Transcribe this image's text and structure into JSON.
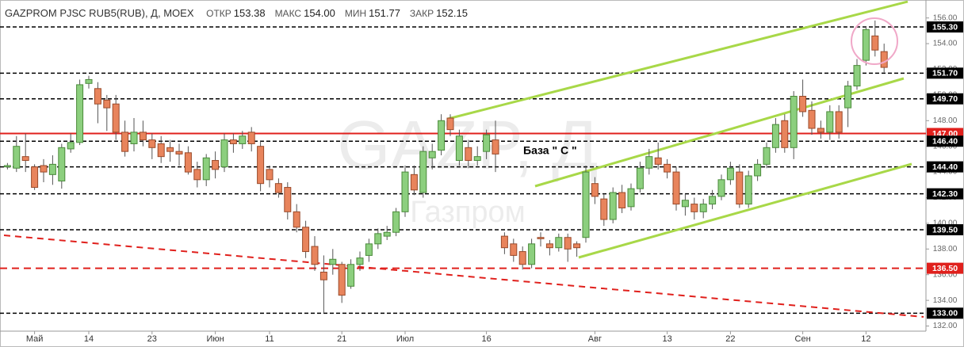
{
  "header": {
    "symbol": "GAZPROM PJSC RUB5(RUB), Д, MOEX",
    "stats": [
      {
        "label": "ОТКР",
        "value": "153.38"
      },
      {
        "label": "МАКС",
        "value": "154.00"
      },
      {
        "label": "МИН",
        "value": "151.77"
      },
      {
        "label": "ЗАКР",
        "value": "152.15"
      }
    ]
  },
  "chart_data": {
    "type": "candlestick",
    "watermark": "GAZP, Д",
    "watermark_subtitle": "Газпром",
    "annotation": "База \" С \"",
    "categories": [
      null,
      null,
      null,
      "Май",
      null,
      null,
      null,
      null,
      null,
      "14",
      null,
      null,
      null,
      null,
      null,
      null,
      "23",
      null,
      null,
      null,
      null,
      null,
      null,
      "Июн",
      null,
      null,
      null,
      null,
      null,
      "11",
      null,
      null,
      null,
      null,
      null,
      null,
      null,
      "21",
      null,
      null,
      null,
      null,
      null,
      null,
      "Июл",
      null,
      null,
      null,
      null,
      null,
      null,
      null,
      null,
      "16",
      null,
      null,
      null,
      null,
      null,
      null,
      null,
      null,
      null,
      null,
      null,
      "Авг",
      null,
      null,
      null,
      null,
      null,
      null,
      null,
      "13",
      null,
      null,
      null,
      null,
      null,
      null,
      "22",
      null,
      null,
      null,
      null,
      null,
      null,
      null,
      "Сен",
      null,
      null,
      null,
      null,
      null,
      null,
      "12",
      null,
      null
    ],
    "open": [
      144.4,
      144.3,
      145.2,
      144.4,
      144.5,
      143.8,
      143.3,
      145.8,
      146.3,
      150.9,
      150.5,
      149.6,
      149.3,
      147.1,
      146.2,
      147.1,
      146.5,
      146.2,
      145.9,
      145.6,
      145.5,
      144.2,
      143.4,
      144.9,
      144.4,
      146.5,
      146.2,
      147.1,
      146.0,
      144.2,
      143.1,
      142.8,
      140.9,
      139.7,
      138.2,
      136.2,
      136.8,
      136.8,
      135.1,
      136.8,
      137.5,
      138.4,
      139.0,
      139.3,
      140.9,
      143.8,
      142.4,
      145.1,
      145.7,
      148.2,
      144.9,
      145.9,
      144.9,
      145.6,
      146.5,
      139.0,
      138.4,
      137.8,
      136.8,
      138.9,
      138.4,
      138.1,
      138.9,
      138.4,
      138.9,
      143.1,
      141.9,
      140.3,
      142.4,
      141.3,
      142.7,
      144.3,
      145.1,
      144.6,
      144.0,
      141.3,
      141.5,
      140.9,
      141.5,
      142.1,
      143.4,
      144.0,
      141.5,
      143.7,
      144.6,
      145.9,
      148.0,
      145.9,
      149.9,
      148.8,
      147.4,
      147.1,
      148.7,
      149.0,
      150.7,
      152.7,
      154.6,
      153.38
    ],
    "high": [
      144.7,
      146.8,
      147.0,
      144.6,
      145.0,
      145.3,
      146.2,
      147.0,
      151.2,
      151.5,
      151.0,
      150.0,
      150.0,
      148.0,
      148.2,
      148.0,
      147.0,
      146.8,
      146.5,
      146.2,
      146.0,
      144.8,
      145.4,
      145.6,
      147.0,
      147.0,
      147.2,
      147.5,
      146.4,
      144.5,
      143.5,
      143.2,
      141.5,
      140.2,
      139.0,
      137.5,
      138.0,
      137.0,
      137.2,
      137.8,
      138.8,
      139.6,
      139.8,
      141.2,
      144.5,
      144.5,
      146.0,
      146.2,
      148.5,
      148.5,
      147.3,
      146.5,
      146.0,
      147.3,
      148.0,
      139.3,
      138.8,
      138.2,
      138.8,
      139.3,
      138.7,
      139.2,
      139.2,
      138.6,
      144.5,
      143.6,
      142.3,
      142.8,
      143.0,
      143.1,
      144.8,
      145.8,
      146.3,
      145.0,
      144.4,
      142.3,
      142.0,
      141.9,
      142.6,
      143.8,
      144.8,
      144.6,
      144.1,
      145.0,
      146.3,
      148.2,
      148.5,
      150.3,
      151.2,
      149.5,
      148.0,
      149.2,
      149.2,
      151.1,
      152.8,
      155.3,
      155.8,
      154.0
    ],
    "low": [
      144.2,
      144.0,
      144.0,
      142.6,
      143.2,
      143.0,
      142.7,
      145.5,
      146.1,
      150.5,
      147.8,
      147.2,
      146.5,
      145.2,
      145.6,
      146.0,
      145.0,
      144.7,
      144.8,
      144.5,
      143.8,
      142.8,
      142.9,
      143.5,
      144.0,
      145.5,
      145.8,
      145.6,
      142.5,
      142.8,
      142.0,
      140.3,
      139.3,
      137.3,
      136.3,
      133.0,
      136.0,
      133.8,
      134.9,
      136.3,
      137.0,
      138.0,
      138.7,
      139.0,
      140.5,
      142.2,
      142.0,
      144.2,
      145.3,
      146.8,
      144.5,
      144.3,
      144.5,
      145.0,
      144.0,
      137.6,
      137.0,
      136.4,
      136.5,
      138.2,
      137.5,
      137.8,
      137.0,
      137.4,
      138.5,
      141.5,
      139.8,
      140.0,
      140.8,
      141.0,
      142.4,
      143.8,
      144.2,
      143.5,
      141.0,
      140.6,
      140.3,
      140.4,
      141.1,
      141.8,
      143.0,
      141.2,
      141.2,
      143.3,
      144.3,
      145.5,
      145.5,
      145.0,
      148.3,
      146.9,
      146.6,
      146.5,
      146.6,
      147.5,
      150.4,
      152.3,
      153.0,
      151.77
    ],
    "close": [
      144.5,
      146.0,
      144.9,
      142.8,
      144.0,
      144.6,
      145.9,
      146.3,
      150.8,
      151.2,
      149.3,
      149.0,
      147.1,
      145.6,
      147.1,
      146.5,
      145.9,
      145.2,
      145.6,
      145.4,
      144.0,
      143.4,
      145.1,
      144.2,
      146.5,
      146.2,
      146.8,
      146.2,
      143.1,
      143.4,
      142.4,
      140.9,
      139.7,
      137.8,
      136.8,
      135.6,
      137.2,
      134.4,
      136.8,
      137.3,
      138.4,
      139.2,
      139.3,
      140.9,
      144.0,
      142.6,
      145.6,
      145.6,
      148.0,
      147.3,
      146.8,
      144.9,
      145.2,
      146.9,
      145.4,
      138.1,
      137.5,
      136.8,
      138.4,
      138.8,
      138.1,
      138.9,
      138.0,
      138.1,
      144.0,
      142.1,
      140.3,
      142.4,
      141.2,
      142.7,
      144.3,
      145.2,
      144.6,
      144.0,
      141.5,
      141.8,
      140.9,
      141.5,
      142.1,
      143.4,
      144.3,
      141.5,
      143.7,
      144.6,
      145.9,
      147.7,
      145.9,
      149.9,
      148.7,
      147.4,
      147.1,
      148.7,
      147.1,
      150.7,
      152.3,
      155.1,
      153.5,
      152.15
    ],
    "up_color": "#8ccf7e",
    "down_color": "#e8845c",
    "ylim": [
      131.6,
      157.4
    ],
    "yticks": [
      {
        "value": 132,
        "label": "132.00"
      },
      {
        "value": 134,
        "label": "134.00"
      },
      {
        "value": 136,
        "label": "136.00"
      },
      {
        "value": 138,
        "label": "138.00"
      },
      {
        "value": 140,
        "label": "140.00"
      },
      {
        "value": 142,
        "label": "142.00"
      },
      {
        "value": 144,
        "label": "144.00"
      },
      {
        "value": 146,
        "label": "146.00"
      },
      {
        "value": 148,
        "label": "148.00"
      },
      {
        "value": 150,
        "label": "150.00"
      },
      {
        "value": 152,
        "label": "152.00"
      },
      {
        "value": 154,
        "label": "154.00"
      },
      {
        "value": 156,
        "label": "156.00"
      }
    ],
    "levels": [
      {
        "value": 155.3,
        "label": "155.30",
        "color": "#000000",
        "style": "dashed"
      },
      {
        "value": 151.7,
        "label": "151.70",
        "color": "#000000",
        "style": "dashed"
      },
      {
        "value": 149.7,
        "label": "149.70",
        "color": "#000000",
        "style": "dashed"
      },
      {
        "value": 147,
        "label": "147.00",
        "color": "#e0201c",
        "style": "solid"
      },
      {
        "value": 146.4,
        "label": "146.40",
        "color": "#000000",
        "style": "dashed"
      },
      {
        "value": 144.4,
        "label": "144.40",
        "color": "#000000",
        "style": "dashed"
      },
      {
        "value": 142.3,
        "label": "142.30",
        "color": "#000000",
        "style": "dashed"
      },
      {
        "value": 139.5,
        "label": "139.50",
        "color": "#000000",
        "style": "dashed"
      },
      {
        "value": 136.5,
        "label": "136.50",
        "color": "#e0201c",
        "style": "dashed"
      },
      {
        "value": 133,
        "label": "133.00",
        "color": "#000000",
        "style": "dashed"
      }
    ]
  }
}
